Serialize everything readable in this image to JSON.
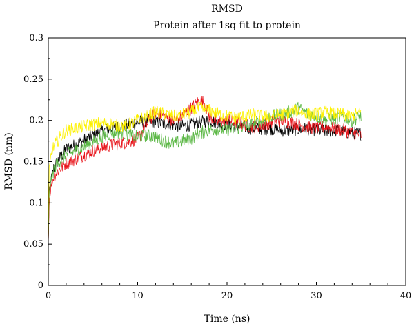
{
  "chart_data": {
    "type": "line",
    "title": "RMSD",
    "subtitle": "Protein after 1sq fit to protein",
    "xlabel": "Time (ns)",
    "ylabel": "RMSD (nm)",
    "xlim": [
      0,
      40
    ],
    "ylim": [
      0,
      0.3
    ],
    "xticks": [
      0,
      10,
      20,
      30,
      40
    ],
    "yticks": [
      0,
      0.05,
      0.1,
      0.15,
      0.2,
      0.25,
      0.3
    ],
    "xtick_labels": [
      "0",
      "10",
      "20",
      "30",
      "40"
    ],
    "ytick_labels": [
      "0",
      "0.05",
      "0.1",
      "0.15",
      "0.2",
      "0.25",
      "0.3"
    ],
    "grid": false,
    "legend": "none",
    "series": [
      {
        "color": "#000000",
        "x": [
          0,
          0.1,
          0.3,
          0.6,
          1,
          1.5,
          2,
          3,
          4,
          5,
          6,
          7,
          8,
          9,
          10,
          11,
          12,
          13,
          14,
          15,
          16,
          17,
          18,
          19,
          20,
          21,
          22,
          23,
          24,
          25,
          26,
          27,
          28,
          29,
          30,
          31,
          32,
          33,
          34,
          35
        ],
        "y": [
          0.05,
          0.11,
          0.13,
          0.142,
          0.15,
          0.157,
          0.165,
          0.17,
          0.176,
          0.182,
          0.187,
          0.19,
          0.192,
          0.195,
          0.198,
          0.2,
          0.198,
          0.196,
          0.195,
          0.193,
          0.195,
          0.198,
          0.2,
          0.197,
          0.195,
          0.194,
          0.192,
          0.19,
          0.19,
          0.19,
          0.188,
          0.188,
          0.189,
          0.19,
          0.188,
          0.187,
          0.188,
          0.186,
          0.185,
          0.184
        ]
      },
      {
        "color": "#e8151b",
        "x": [
          0,
          0.1,
          0.3,
          0.6,
          1,
          1.5,
          2,
          3,
          4,
          5,
          6,
          7,
          8,
          9,
          10,
          11,
          12,
          13,
          14,
          15,
          16,
          17,
          17.5,
          18,
          19,
          20,
          21,
          22,
          23,
          24,
          25,
          26,
          27,
          28,
          29,
          30,
          31,
          32,
          33,
          34,
          35
        ],
        "y": [
          0.05,
          0.1,
          0.12,
          0.132,
          0.138,
          0.143,
          0.148,
          0.153,
          0.158,
          0.163,
          0.167,
          0.17,
          0.172,
          0.174,
          0.178,
          0.195,
          0.21,
          0.205,
          0.2,
          0.205,
          0.215,
          0.225,
          0.22,
          0.205,
          0.198,
          0.2,
          0.198,
          0.195,
          0.192,
          0.195,
          0.198,
          0.2,
          0.198,
          0.195,
          0.192,
          0.19,
          0.192,
          0.19,
          0.188,
          0.185,
          0.182
        ]
      },
      {
        "color": "#5cb846",
        "x": [
          0,
          0.1,
          0.3,
          0.6,
          1,
          1.5,
          2,
          3,
          4,
          5,
          6,
          7,
          8,
          9,
          10,
          11,
          12,
          13,
          14,
          15,
          16,
          17,
          18,
          19,
          20,
          21,
          22,
          23,
          24,
          25,
          26,
          27,
          28,
          29,
          30,
          31,
          32,
          33,
          34,
          35
        ],
        "y": [
          0.05,
          0.11,
          0.128,
          0.14,
          0.148,
          0.152,
          0.158,
          0.163,
          0.168,
          0.174,
          0.18,
          0.184,
          0.186,
          0.182,
          0.18,
          0.182,
          0.18,
          0.175,
          0.172,
          0.175,
          0.178,
          0.185,
          0.188,
          0.19,
          0.188,
          0.19,
          0.193,
          0.196,
          0.2,
          0.205,
          0.207,
          0.21,
          0.215,
          0.208,
          0.205,
          0.2,
          0.202,
          0.205,
          0.2,
          0.205
        ]
      },
      {
        "color": "#fdf100",
        "x": [
          0,
          0.1,
          0.3,
          0.6,
          1,
          1.5,
          2,
          3,
          4,
          5,
          6,
          7,
          8,
          9,
          10,
          11,
          12,
          13,
          14,
          15,
          16,
          17,
          18,
          19,
          20,
          21,
          22,
          23,
          24,
          25,
          26,
          27,
          28,
          29,
          30,
          31,
          32,
          33,
          34,
          35
        ],
        "y": [
          0.05,
          0.14,
          0.158,
          0.168,
          0.175,
          0.182,
          0.188,
          0.19,
          0.193,
          0.195,
          0.197,
          0.196,
          0.193,
          0.195,
          0.2,
          0.205,
          0.21,
          0.208,
          0.205,
          0.207,
          0.21,
          0.215,
          0.212,
          0.208,
          0.205,
          0.203,
          0.205,
          0.207,
          0.205,
          0.205,
          0.207,
          0.21,
          0.212,
          0.207,
          0.208,
          0.21,
          0.208,
          0.207,
          0.205,
          0.21
        ]
      }
    ]
  }
}
